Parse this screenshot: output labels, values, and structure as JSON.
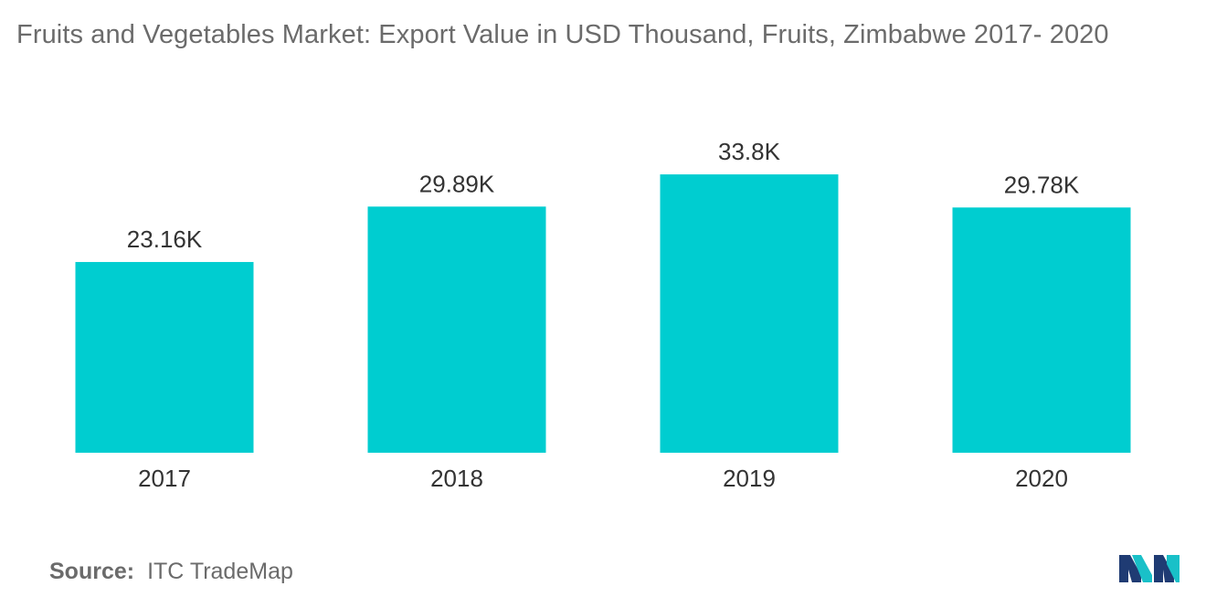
{
  "title": "Fruits and Vegetables Market: Export Value in USD Thousand, Fruits, Zimbabwe 2017- 2020",
  "source": {
    "label": "Source:",
    "text": "ITC TradeMap"
  },
  "logo": {
    "icon": "mordor-intelligence-logo",
    "colors": [
      "#1f3b73",
      "#19c0c8"
    ]
  },
  "chart_data": {
    "type": "bar",
    "title": "Fruits and Vegetables Market: Export Value in USD Thousand, Fruits, Zimbabwe 2017- 2020",
    "xlabel": "",
    "ylabel": "",
    "categories": [
      "2017",
      "2018",
      "2019",
      "2020"
    ],
    "values": [
      23.16,
      29.89,
      33.8,
      29.78
    ],
    "data_labels": [
      "23.16K",
      "29.89K",
      "33.8K",
      "29.78K"
    ],
    "ylim": [
      0,
      45
    ],
    "bar_color": "#00cdd0",
    "grid": false,
    "legend": "none"
  }
}
